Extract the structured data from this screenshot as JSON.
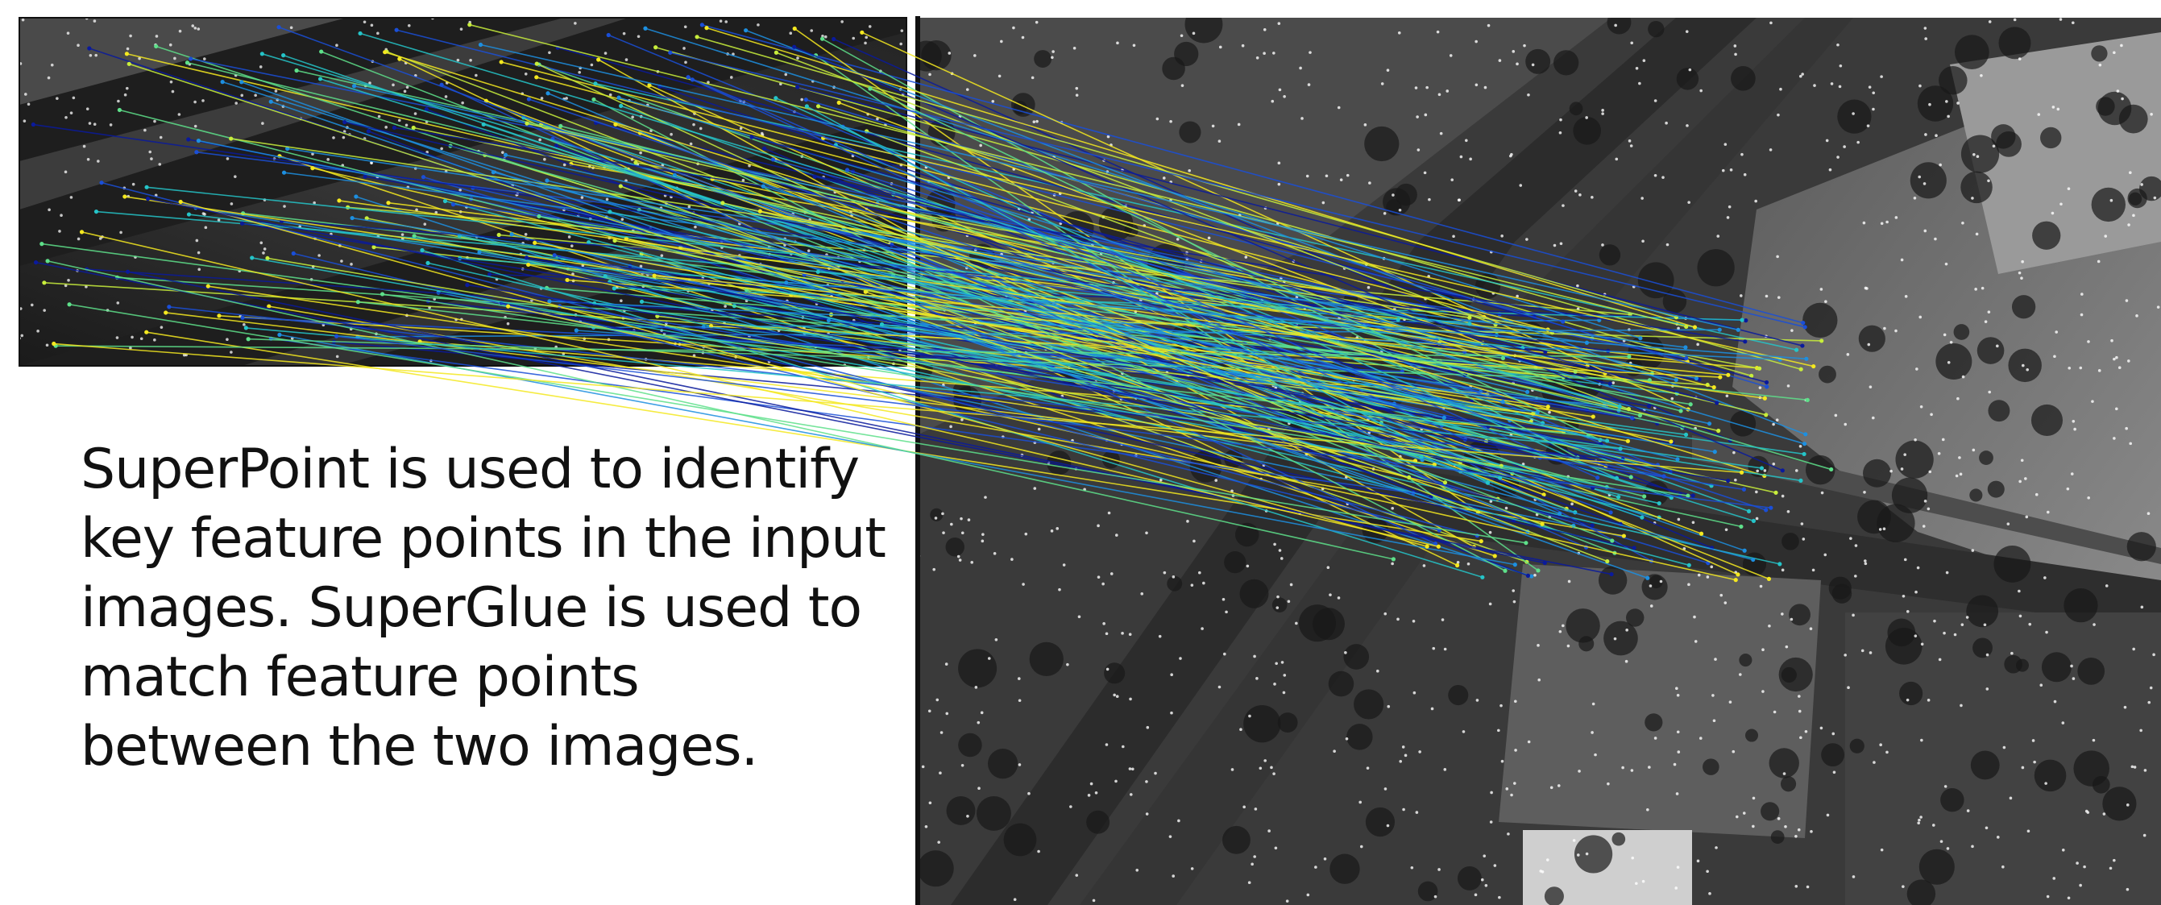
{
  "caption": {
    "text": "SuperPoint is used to identify key feature points in the input images. SuperGlue is used to match feature points between the two images."
  },
  "figure": {
    "left_image_desc": "grayscale aerial photo (query)",
    "right_image_desc": "grayscale aerial photo of highway interchange (reference)",
    "match_colormap": [
      "#0a1a9c",
      "#1a4fd8",
      "#1d8fe0",
      "#25c4c8",
      "#5ee08a",
      "#c8ee3c",
      "#f4e820"
    ],
    "keypoint_color": "#ffffff"
  }
}
